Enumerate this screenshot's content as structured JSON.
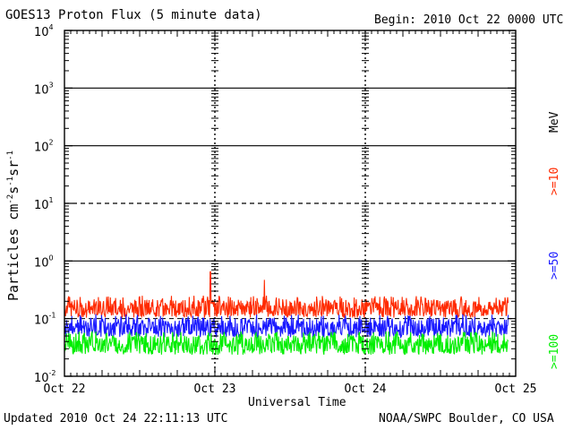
{
  "header": {
    "title": "GOES13 Proton Flux (5 minute data)",
    "begin": "Begin: 2010 Oct 22 0000 UTC"
  },
  "footer": {
    "updated": "Updated 2010 Oct 24 22:11:13 UTC",
    "credit": "NOAA/SWPC Boulder, CO USA"
  },
  "legend": {
    "unit": "MeV",
    "ge10": ">=10",
    "ge50": ">=50",
    "ge100": ">=100"
  },
  "chart_data": {
    "type": "line",
    "title": "GOES13 Proton Flux (5 minute data)",
    "xlabel": "Universal Time",
    "ylabel": "Particles cm-2s-1sr-1",
    "y_scale": "log",
    "ylim": [
      0.01,
      10000
    ],
    "xlim": [
      0,
      3
    ],
    "x_tick_labels": [
      "Oct 22",
      "Oct 23",
      "Oct 24",
      "Oct 25"
    ],
    "y_tick_labels": [
      "10-2",
      "10-1",
      "100",
      "101",
      "102",
      "103",
      "104"
    ],
    "reference_lines": [
      1,
      10,
      100,
      1000
    ],
    "dashed_reference_lines": [
      0.1,
      10
    ],
    "legend_placement": "right side, rotated",
    "colors": {
      ">=10": "#ff2a00",
      ">=50": "#1a1aff",
      ">=100": "#00ee00"
    },
    "series": [
      {
        "name": ">=10",
        "color": "#ff2a00",
        "typical_value": 0.15,
        "range": [
          0.11,
          0.25
        ],
        "spikes": [
          {
            "x": 0.97,
            "value": 0.65
          },
          {
            "x": 1.33,
            "value": 0.47
          }
        ]
      },
      {
        "name": ">=50",
        "color": "#1a1aff",
        "typical_value": 0.07,
        "range": [
          0.05,
          0.12
        ]
      },
      {
        "name": ">=100",
        "color": "#00ee00",
        "typical_value": 0.035,
        "range": [
          0.025,
          0.06
        ]
      }
    ],
    "x_end": 2.95
  }
}
